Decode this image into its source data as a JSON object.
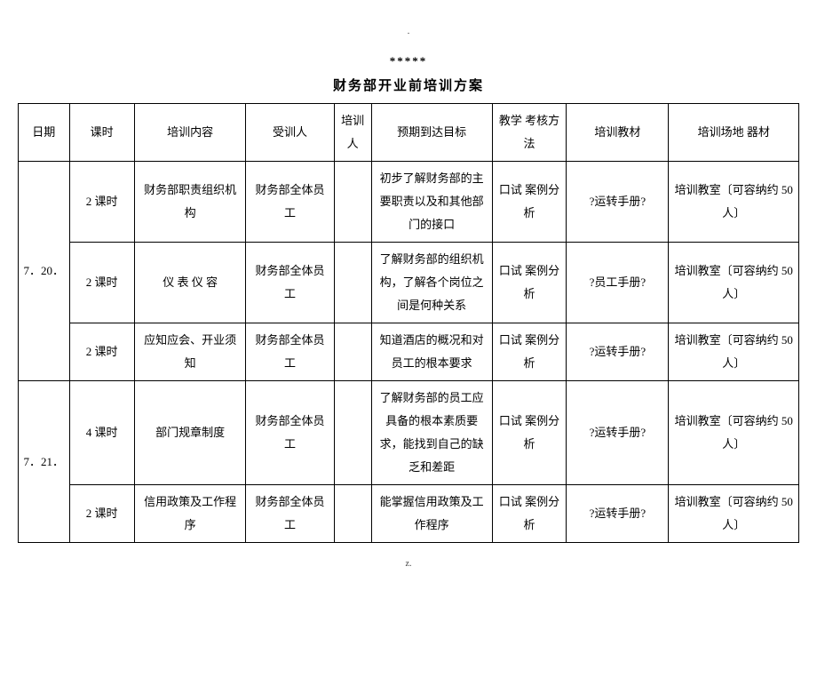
{
  "marks": {
    "top": ".",
    "stars": "*****",
    "footer": "z."
  },
  "title": "财务部开业前培训方案",
  "headers": {
    "date": "日期",
    "hours": "课时",
    "content": "培训内容",
    "trainee": "受训人",
    "trainer": "培训人",
    "goal": "预期到达目标",
    "method": "教学\n考核方法",
    "material": "培训教材",
    "venue": "培训场地\n器材"
  },
  "groups": [
    {
      "date": "7．20．",
      "rows": [
        {
          "hours": "2 课时",
          "content": "财务部职责组织机构",
          "trainee": "财务部全体员工",
          "trainer": "",
          "goal": "初步了解财务部的主要职责以及和其他部门的接口",
          "method": "口试\n案例分析",
          "material": "?运转手册?",
          "venue": "培训教室〔可容纳约 50 人〕"
        },
        {
          "hours": "2 课时",
          "content": "仪 表 仪 容",
          "trainee": "财务部全体员工",
          "trainer": "",
          "goal": "了解财务部的组织机构，了解各个岗位之间是何种关系",
          "method": "口试\n案例分析",
          "material": "?员工手册?",
          "venue": "培训教室〔可容纳约 50 人〕"
        },
        {
          "hours": "2 课时",
          "content": "应知应会、开业须知",
          "trainee": "财务部全体员工",
          "trainer": "",
          "goal": "知道酒店的概况和对员工的根本要求",
          "method": "口试\n案例分析",
          "material": "?运转手册?",
          "venue": "培训教室〔可容纳约 50 人〕"
        }
      ]
    },
    {
      "date": "7．21．",
      "rows": [
        {
          "hours": "4 课时",
          "content": "部门规章制度",
          "trainee": "财务部全体员工",
          "trainer": "",
          "goal": "了解财务部的员工应具备的根本素质要求，能找到自己的缺乏和差距",
          "method": "口试\n案例分析",
          "material": "?运转手册?",
          "venue": "培训教室〔可容纳约 50 人〕"
        },
        {
          "hours": "2 课时",
          "content": "信用政策及工作程序",
          "trainee": "财务部全体员工",
          "trainer": "",
          "goal": "能掌握信用政策及工作程序",
          "method": "口试\n案例分析",
          "material": "?运转手册?",
          "venue": "培训教室〔可容纳约 50 人〕"
        }
      ]
    }
  ]
}
